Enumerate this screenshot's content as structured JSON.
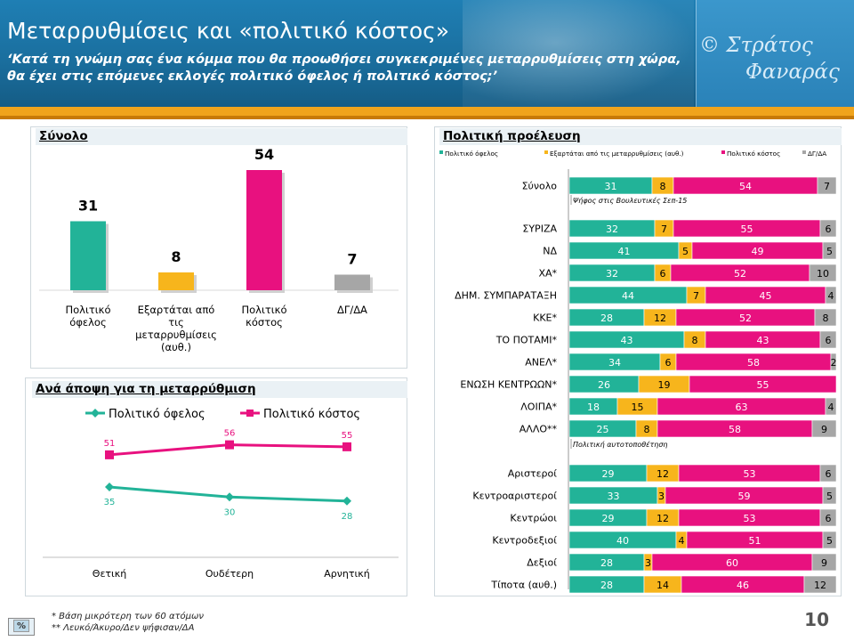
{
  "header": {
    "title": "Μεταρρυθμίσεις και «πολιτικό κόστος»",
    "question_line1": "‘Κατά τη γνώμη σας ένα κόμμα που θα προωθήσει συγκεκριμένες μεταρρυθμίσεις στη χώρα,",
    "question_line2": "θα έχει στις επόμενες εκλογές πολιτικό όφελος ή πολιτικό κόστος;’",
    "copyright_line1": "© Στράτος",
    "copyright_line2": "Φαναράς"
  },
  "colors": {
    "benefit": "#22b398",
    "depends": "#f7b51c",
    "cost": "#e8117f",
    "dk": "#a6a6a6"
  },
  "chart_data": [
    {
      "id": "total",
      "type": "bar",
      "title": "Σύνολο",
      "categories": [
        [
          "Πολιτικό",
          "όφελος"
        ],
        [
          "Εξαρτάται από",
          "τις",
          "μεταρρυθμίσεις",
          "(αυθ.)"
        ],
        [
          "Πολιτικό",
          "κόστος"
        ],
        [
          "ΔΓ/ΔΑ"
        ]
      ],
      "values": [
        31,
        8,
        54,
        7
      ],
      "colors": [
        "#22b398",
        "#f7b51c",
        "#e8117f",
        "#a6a6a6"
      ],
      "ylim": [
        0,
        60
      ]
    },
    {
      "id": "by-view",
      "type": "line",
      "title": "Ανά άποψη για τη μεταρρύθμιση",
      "categories": [
        "Θετική",
        "Ουδέτερη",
        "Αρνητική"
      ],
      "series": [
        {
          "name": "Πολιτικό όφελος",
          "values": [
            35,
            30,
            28
          ],
          "color": "#22b398"
        },
        {
          "name": "Πολιτικό κόστος",
          "values": [
            51,
            56,
            55
          ],
          "color": "#e8117f"
        }
      ],
      "legend": "top",
      "ylim": [
        0,
        70
      ]
    },
    {
      "id": "political-origin",
      "type": "bar",
      "stacked": "horizontal",
      "title": "Πολιτική προέλευση",
      "legend": [
        "Πολιτικό όφελος",
        "Εξαρτάται από τις μεταρρυθμίσεις (αυθ.)",
        "Πολιτικό κόστος",
        "ΔΓ/ΔΑ"
      ],
      "groups": [
        {
          "label": "",
          "rows": [
            {
              "label": "Σύνολο",
              "values": [
                31,
                8,
                54,
                7
              ]
            }
          ]
        },
        {
          "label": "Ψήφος στις Βουλευτικές Σεπ-15",
          "rows": [
            {
              "label": "ΣΥΡΙΖΑ",
              "values": [
                32,
                7,
                55,
                6
              ]
            },
            {
              "label": "ΝΔ",
              "values": [
                41,
                5,
                49,
                5
              ]
            },
            {
              "label": "ΧΑ*",
              "values": [
                32,
                6,
                52,
                10
              ]
            },
            {
              "label": "ΔΗΜ. ΣΥΜΠΑΡΑΤΑΞΗ",
              "values": [
                44,
                7,
                45,
                4
              ]
            },
            {
              "label": "ΚΚΕ*",
              "values": [
                28,
                12,
                52,
                8
              ]
            },
            {
              "label": "ΤΟ ΠΟΤΑΜΙ*",
              "values": [
                43,
                8,
                43,
                6
              ]
            },
            {
              "label": "ΑΝΕΛ*",
              "values": [
                34,
                6,
                58,
                2
              ]
            },
            {
              "label": "ΕΝΩΣΗ ΚΕΝΤΡΩΩΝ*",
              "values": [
                26,
                19,
                55,
                0
              ]
            },
            {
              "label": "ΛΟΙΠΑ*",
              "values": [
                18,
                15,
                63,
                4
              ]
            },
            {
              "label": "ΑΛΛΟ**",
              "values": [
                25,
                8,
                58,
                9
              ]
            }
          ]
        },
        {
          "label": "Πολιτική αυτοτοποθέτηση",
          "rows": [
            {
              "label": "Αριστεροί",
              "values": [
                29,
                12,
                53,
                6
              ]
            },
            {
              "label": "Κεντροαριστεροί",
              "values": [
                33,
                3,
                59,
                5
              ]
            },
            {
              "label": "Κεντρώοι",
              "values": [
                29,
                12,
                53,
                6
              ]
            },
            {
              "label": "Κεντροδεξιοί",
              "values": [
                40,
                4,
                51,
                5
              ]
            },
            {
              "label": "Δεξιοί",
              "values": [
                28,
                3,
                60,
                9
              ]
            },
            {
              "label": "Τίποτα (αυθ.)",
              "values": [
                28,
                14,
                46,
                12
              ]
            }
          ]
        }
      ],
      "xlim": [
        0,
        100
      ]
    }
  ],
  "footer": {
    "note1": "* Βάση μικρότερη των 60 ατόμων",
    "note2": "** Λευκό/Άκυρο/Δεν ψήφισαν/ΔΑ",
    "badge": "%",
    "page_number": "10"
  }
}
